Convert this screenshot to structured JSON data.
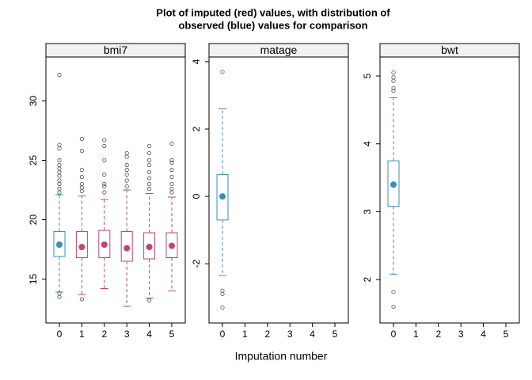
{
  "title": [
    "Plot of imputed (red) values, with distribution of",
    "observed (blue) values for comparison"
  ],
  "xlabel": "Imputation number",
  "chart_data": [
    {
      "type": "box",
      "title": "bmi7",
      "categories": [
        "0",
        "1",
        "2",
        "3",
        "4",
        "5"
      ],
      "ylim": [
        11.3,
        33.7
      ],
      "yticks": [
        15,
        20,
        25,
        30
      ],
      "boxes": [
        {
          "color": "#3a8dc0",
          "whisker_low": 13.9,
          "q1": 16.9,
          "median": 17.9,
          "q3": 19.0,
          "whisker_high": 22.1,
          "outliers": [
            13.5,
            13.8,
            22.3,
            22.6,
            23.0,
            23.3,
            23.7,
            24.0,
            24.3,
            24.6,
            25.0,
            26.0,
            26.3,
            32.2
          ]
        },
        {
          "color": "#c2456e",
          "whisker_low": 13.7,
          "q1": 16.8,
          "median": 17.7,
          "q3": 19.0,
          "whisker_high": 22.0,
          "outliers": [
            13.3,
            22.4,
            22.7,
            23.0,
            23.6,
            24.2,
            25.8,
            26.8
          ]
        },
        {
          "color": "#c2456e",
          "whisker_low": 14.2,
          "q1": 16.8,
          "median": 17.9,
          "q3": 19.1,
          "whisker_high": 21.7,
          "outliers": [
            22.3,
            22.8,
            23.0,
            23.8,
            25.0,
            26.2,
            26.7
          ]
        },
        {
          "color": "#c2456e",
          "whisker_low": 12.7,
          "q1": 16.5,
          "median": 17.6,
          "q3": 19.0,
          "whisker_high": 22.5,
          "outliers": [
            22.8,
            23.3,
            23.8,
            24.2,
            24.6,
            25.3,
            25.6
          ]
        },
        {
          "color": "#c2456e",
          "whisker_low": 13.4,
          "q1": 16.7,
          "median": 17.7,
          "q3": 18.9,
          "whisker_high": 22.2,
          "outliers": [
            13.2,
            22.6,
            23.0,
            23.5,
            24.0,
            24.6,
            25.0,
            25.6,
            26.2
          ]
        },
        {
          "color": "#c2456e",
          "whisker_low": 14.0,
          "q1": 16.8,
          "median": 17.8,
          "q3": 18.9,
          "whisker_high": 21.9,
          "outliers": [
            22.3,
            22.6,
            23.0,
            23.6,
            24.2,
            24.8,
            25.0,
            26.4
          ]
        }
      ]
    },
    {
      "type": "box",
      "title": "matage",
      "categories": [
        "0",
        "1",
        "2",
        "3",
        "4",
        "5"
      ],
      "ylim": [
        -3.76,
        4.14
      ],
      "yticks": [
        -2,
        0,
        2,
        4
      ],
      "boxes": [
        {
          "color": "#3a8dc0",
          "whisker_low": -2.35,
          "q1": -0.7,
          "median": 0,
          "q3": 0.65,
          "whisker_high": 2.6,
          "outliers": [
            -3.3,
            -2.9,
            -2.8,
            3.7
          ]
        },
        null,
        null,
        null,
        null,
        null
      ]
    },
    {
      "type": "box",
      "title": "bwt",
      "categories": [
        "0",
        "1",
        "2",
        "3",
        "4",
        "5"
      ],
      "ylim": [
        1.36,
        5.28
      ],
      "yticks": [
        2,
        3,
        4,
        5
      ],
      "boxes": [
        {
          "color": "#3a8dc0",
          "whisker_low": 2.08,
          "q1": 3.08,
          "median": 3.4,
          "q3": 3.75,
          "whisker_high": 4.68,
          "outliers": [
            1.6,
            1.82,
            4.78,
            4.82,
            4.93,
            4.98,
            5.05
          ]
        },
        null,
        null,
        null,
        null,
        null
      ]
    }
  ]
}
